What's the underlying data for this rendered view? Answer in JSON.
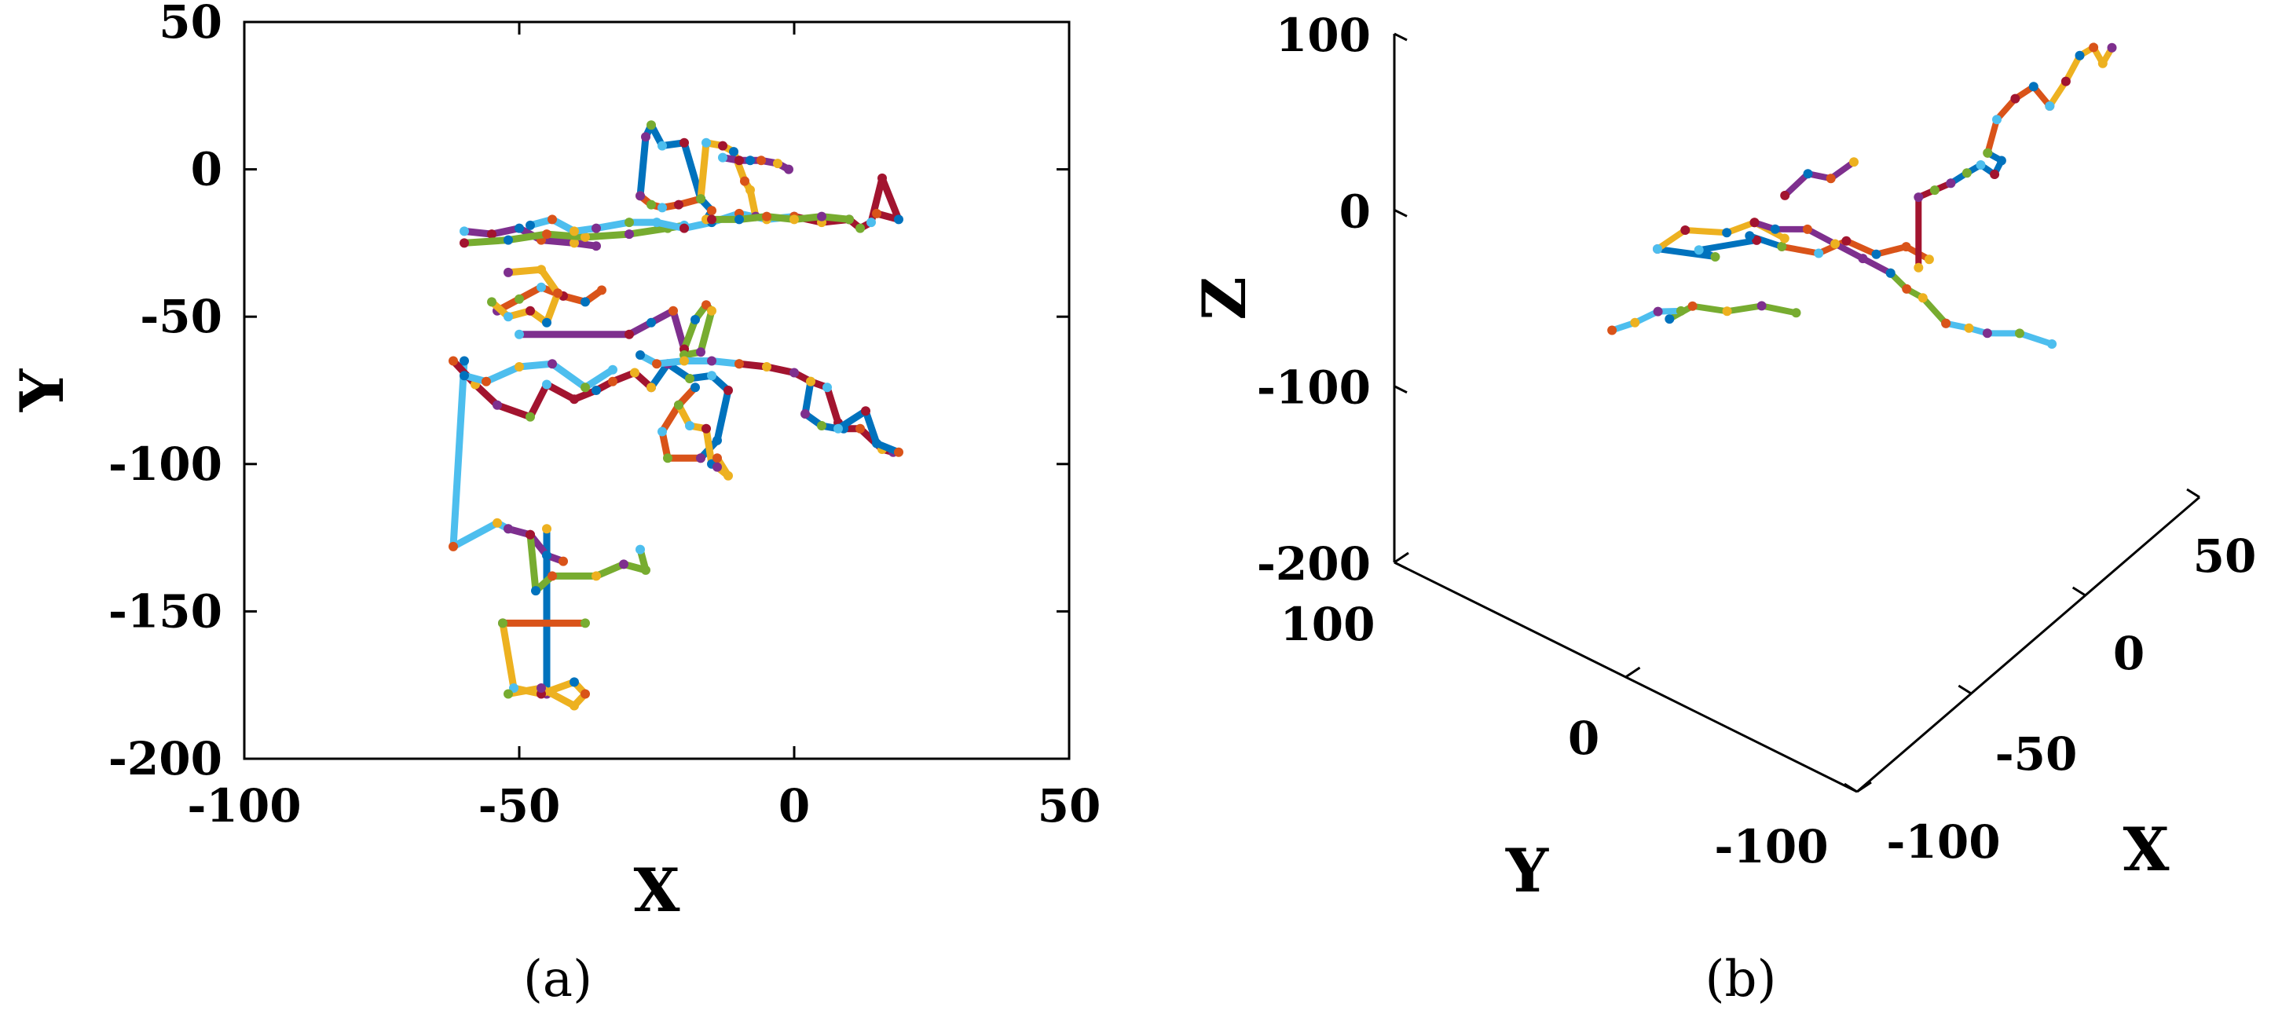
{
  "chart_data": [
    {
      "type": "line",
      "panel_label": "(a)",
      "xlabel": "X",
      "ylabel": "Y",
      "xlim": [
        -100,
        50
      ],
      "ylim": [
        -200,
        50
      ],
      "xticks": [
        -100,
        -50,
        0,
        50
      ],
      "yticks": [
        50,
        0,
        -50,
        -100,
        -150,
        -200
      ],
      "xtick_labels": [
        "-100",
        "-50",
        "0",
        "50"
      ],
      "ytick_labels": [
        "50",
        "0",
        "-50",
        "-100",
        "-150",
        "-200"
      ],
      "grid": false,
      "box": true,
      "colors": [
        "#0072bd",
        "#d95319",
        "#edb120",
        "#7e2f8e",
        "#77ac30",
        "#4dbeee",
        "#a2142f"
      ],
      "series": [
        {
          "x": [
            -45,
            -45
          ],
          "y": [
            -122,
            -178
          ]
        },
        {
          "x": [
            -53,
            -38
          ],
          "y": [
            -154,
            -154
          ]
        },
        {
          "x": [
            -53,
            -51,
            -46,
            -40,
            -38,
            -40,
            -46,
            -52
          ],
          "y": [
            -154,
            -176,
            -178,
            -174,
            -178,
            -182,
            -176,
            -178
          ]
        },
        {
          "x": [
            -52,
            -48,
            -45,
            -42
          ],
          "y": [
            -122,
            -124,
            -131,
            -133
          ]
        },
        {
          "x": [
            -48,
            -47,
            -44,
            -36,
            -31,
            -27,
            -28
          ],
          "y": [
            -124,
            -143,
            -138,
            -138,
            -134,
            -136,
            -129
          ]
        },
        {
          "x": [
            -60,
            -62,
            -54,
            -52
          ],
          "y": [
            -65,
            -128,
            -120,
            -122
          ]
        },
        {
          "x": [
            -62,
            -58,
            -54,
            -48,
            -45,
            -40,
            -36,
            -33,
            -29,
            -26
          ],
          "y": [
            -65,
            -73,
            -80,
            -84,
            -73,
            -78,
            -75,
            -72,
            -69,
            -74
          ]
        },
        {
          "x": [
            -26,
            -23,
            -19,
            -15,
            -12,
            -14,
            -17
          ],
          "y": [
            -74,
            -66,
            -71,
            -70,
            -75,
            -92,
            -98
          ]
        },
        {
          "x": [
            -17,
            -23,
            -24,
            -21,
            -18
          ],
          "y": [
            -98,
            -98,
            -89,
            -80,
            -74
          ]
        },
        {
          "x": [
            -21,
            -19,
            -16,
            -15,
            -14,
            -12,
            -14
          ],
          "y": [
            -80,
            -87,
            -88,
            -100,
            -98,
            -104,
            -101
          ]
        },
        {
          "x": [
            -50,
            -30,
            -26,
            -22,
            -20
          ],
          "y": [
            -56,
            -56,
            -52,
            -48,
            -61
          ]
        },
        {
          "x": [
            -20,
            -18,
            -16,
            -15,
            -17,
            -20
          ],
          "y": [
            -61,
            -51,
            -46,
            -48,
            -62,
            -63
          ]
        },
        {
          "x": [
            -28,
            -25,
            -20,
            -15,
            -10
          ],
          "y": [
            -63,
            -66,
            -65,
            -65,
            -66
          ]
        },
        {
          "x": [
            -10,
            -5,
            0,
            3,
            6,
            8,
            9,
            12,
            16,
            18
          ],
          "y": [
            -66,
            -67,
            -69,
            -72,
            -74,
            -86,
            -88,
            -88,
            -95,
            -96
          ]
        },
        {
          "x": [
            3,
            2,
            5,
            8,
            13,
            15,
            19
          ],
          "y": [
            -72,
            -83,
            -87,
            -88,
            -82,
            -93,
            -96
          ]
        },
        {
          "x": [
            -54,
            -50,
            -46,
            -42,
            -38,
            -35
          ],
          "y": [
            -48,
            -44,
            -40,
            -43,
            -45,
            -41
          ]
        },
        {
          "x": [
            -55,
            -52,
            -48,
            -45,
            -43,
            -46,
            -52
          ],
          "y": [
            -45,
            -50,
            -48,
            -52,
            -42,
            -34,
            -35
          ]
        },
        {
          "x": [
            -60,
            -55,
            -50,
            -46,
            -40,
            -36
          ],
          "y": [
            -21,
            -22,
            -20,
            -24,
            -25,
            -26
          ]
        },
        {
          "x": [
            -60,
            -52,
            -45,
            -38,
            -30,
            -23,
            -20
          ],
          "y": [
            -25,
            -24,
            -22,
            -23,
            -22,
            -20,
            -19
          ]
        },
        {
          "x": [
            -48,
            -44,
            -40,
            -36,
            -30,
            -25,
            -20,
            -15,
            -10,
            -5,
            0
          ],
          "y": [
            -19,
            -17,
            -21,
            -20,
            -18,
            -18,
            -20,
            -18,
            -15,
            -17,
            -16
          ]
        },
        {
          "x": [
            0,
            5,
            10,
            12,
            14,
            16,
            19,
            15
          ],
          "y": [
            -16,
            -18,
            -17,
            -20,
            -18,
            -3,
            -17,
            -15
          ]
        },
        {
          "x": [
            -28,
            -27,
            -26,
            -24,
            -20,
            -17,
            -15,
            -16
          ],
          "y": [
            -9,
            11,
            15,
            8,
            9,
            -10,
            -14,
            -17
          ]
        },
        {
          "x": [
            -28,
            -26,
            -24,
            -21,
            -17
          ],
          "y": [
            -9,
            -12,
            -13,
            -12,
            -10
          ]
        },
        {
          "x": [
            -17,
            -16,
            -13,
            -11,
            -9,
            -8,
            -7
          ],
          "y": [
            -10,
            9,
            8,
            6,
            -4,
            -7,
            -16
          ]
        },
        {
          "x": [
            -13,
            -10,
            -8,
            -6,
            -3,
            -1
          ],
          "y": [
            4,
            3,
            3,
            3,
            2,
            0
          ]
        },
        {
          "x": [
            -15,
            -10,
            -5,
            0,
            5,
            10
          ],
          "y": [
            -17,
            -17,
            -16,
            -17,
            -16,
            -17
          ]
        },
        {
          "x": [
            -60,
            -56,
            -50,
            -44,
            -38,
            -33
          ],
          "y": [
            -70,
            -72,
            -67,
            -66,
            -74,
            -68
          ]
        }
      ]
    },
    {
      "type": "line",
      "panel_label": "(b)",
      "xlabel": "X",
      "ylabel": "Y",
      "zlabel": "Z",
      "xlim": [
        -100,
        50
      ],
      "ylim": [
        -100,
        100
      ],
      "zlim": [
        -200,
        100
      ],
      "xtick_labels": [
        "-100",
        "-50",
        "0",
        "50"
      ],
      "ytick_labels": [
        "100",
        "0",
        "-100"
      ],
      "ztick_labels": [
        "100",
        "0",
        "-100",
        "-200"
      ],
      "grid": false,
      "colors": [
        "#0072bd",
        "#d95319",
        "#edb120",
        "#7e2f8e",
        "#77ac30",
        "#4dbeee",
        "#a2142f"
      ],
      "series": [
        {
          "x": [
            -5,
            0,
            3,
            8,
            10,
            14
          ],
          "y": [
            80,
            60,
            70,
            50,
            55,
            45
          ],
          "z": [
            -115,
            -112,
            -118,
            -105,
            -108,
            -112
          ]
        },
        {
          "x": [
            14,
            20,
            25,
            30,
            35,
            38
          ],
          "y": [
            45,
            35,
            28,
            20,
            12,
            5
          ],
          "z": [
            -112,
            -116,
            -110,
            -118,
            -114,
            -120
          ]
        },
        {
          "x": [
            -5,
            -3,
            0,
            2,
            0
          ],
          "y": [
            80,
            70,
            55,
            45,
            30
          ],
          "z": [
            -115,
            -100,
            -95,
            -85,
            -82
          ]
        },
        {
          "x": [
            2,
            6,
            10,
            12,
            14,
            16
          ],
          "y": [
            45,
            40,
            30,
            20,
            10,
            0
          ],
          "z": [
            -85,
            -90,
            -88,
            -92,
            -96,
            -100
          ]
        },
        {
          "x": [
            16,
            18,
            20,
            20
          ],
          "y": [
            0,
            -5,
            -10,
            -20
          ],
          "z": [
            -100,
            -108,
            -112,
            -120
          ]
        },
        {
          "x": [
            20,
            25,
            28,
            32,
            36
          ],
          "y": [
            -20,
            -25,
            -30,
            -40,
            -50
          ],
          "z": [
            -120,
            -125,
            -128,
            -126,
            -130
          ]
        },
        {
          "x": [
            8,
            8,
            10,
            12
          ],
          "y": [
            -20,
            -20,
            -25,
            -30
          ],
          "z": [
            -75,
            -35,
            -30,
            -25
          ]
        },
        {
          "x": [
            12,
            15,
            17,
            19,
            20,
            18
          ],
          "y": [
            -30,
            -34,
            -38,
            -42,
            -44,
            -40
          ],
          "z": [
            -25,
            -20,
            -15,
            -20,
            -12,
            -8
          ]
        },
        {
          "x": [
            18,
            20,
            24,
            28,
            30
          ],
          "y": [
            -40,
            -42,
            -46,
            -50,
            -55
          ],
          "z": [
            -8,
            10,
            20,
            25,
            15
          ]
        },
        {
          "x": [
            30,
            32,
            34,
            36,
            38,
            40
          ],
          "y": [
            -55,
            -60,
            -64,
            -68,
            -70,
            -72
          ],
          "z": [
            15,
            30,
            45,
            50,
            40,
            48
          ]
        },
        {
          "x": [
            -10,
            -5,
            0,
            5
          ],
          "y": [
            20,
            15,
            10,
            5
          ],
          "z": [
            -40,
            -30,
            -35,
            -28
          ]
        },
        {
          "x": [
            -20,
            -15,
            -10,
            -5,
            0
          ],
          "y": [
            60,
            55,
            45,
            35,
            25
          ],
          "z": [
            -125,
            -120,
            -122,
            -118,
            -121
          ]
        },
        {
          "x": [
            -30,
            -25,
            -20,
            -15
          ],
          "y": [
            75,
            70,
            65,
            60
          ],
          "z": [
            -130,
            -128,
            -124,
            -126
          ]
        }
      ]
    }
  ]
}
